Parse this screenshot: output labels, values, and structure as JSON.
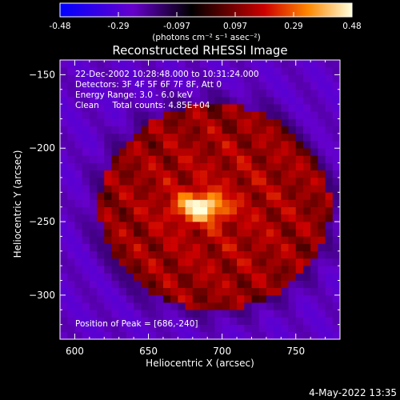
{
  "chart_data": {
    "type": "heatmap",
    "title": "Reconstructed RHESSI Image",
    "xlabel": "Heliocentric X (arcsec)",
    "ylabel": "Heliocentric Y (arcsec)",
    "xlim": [
      590,
      780
    ],
    "ylim": [
      -330,
      -140
    ],
    "x_ticks": [
      600,
      650,
      700,
      750
    ],
    "y_ticks": [
      -150,
      -200,
      -250,
      -300
    ],
    "colorbar": {
      "min": -0.48,
      "max": 0.48,
      "ticks": [
        "-0.48",
        "-0.29",
        "-0.097",
        "0.097",
        "0.29",
        "0.48"
      ],
      "units_label": "(photons cm⁻² s⁻¹ asec⁻²)",
      "colormap": [
        "#0000ff",
        "#6600cc",
        "#000000",
        "#cc0000",
        "#ff8800",
        "#ffffdd"
      ]
    },
    "annotations": [
      "22-Dec-2002 10:28:48.000 to 10:31:24.000",
      "Detectors: 3F 4F 5F 6F 7F 8F, Att 0",
      "Energy Range: 3.0 - 6.0 keV",
      "Clean     Total counts: 4.85E+04"
    ],
    "peak_label": "Position of Peak = [686,-240]",
    "peak": {
      "x": 686,
      "y": -240,
      "value": 0.48
    }
  },
  "timestamp": "4-May-2022 13:35"
}
